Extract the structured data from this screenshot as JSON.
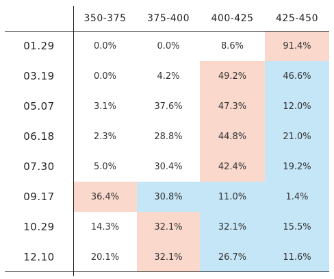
{
  "chart_data": {
    "type": "table",
    "columns": [
      "350-375",
      "375-400",
      "400-425",
      "425-450"
    ],
    "rows": [
      {
        "date": "01.29",
        "values": [
          "0.0%",
          "0.0%",
          "8.6%",
          "91.4%"
        ],
        "highlight": [
          "none",
          "none",
          "none",
          "peach"
        ]
      },
      {
        "date": "03.19",
        "values": [
          "0.0%",
          "4.2%",
          "49.2%",
          "46.6%"
        ],
        "highlight": [
          "none",
          "none",
          "peach",
          "blue"
        ]
      },
      {
        "date": "05.07",
        "values": [
          "3.1%",
          "37.6%",
          "47.3%",
          "12.0%"
        ],
        "highlight": [
          "none",
          "none",
          "peach",
          "blue"
        ]
      },
      {
        "date": "06.18",
        "values": [
          "2.3%",
          "28.8%",
          "44.8%",
          "21.0%"
        ],
        "highlight": [
          "none",
          "none",
          "peach",
          "blue"
        ]
      },
      {
        "date": "07.30",
        "values": [
          "5.0%",
          "30.4%",
          "42.4%",
          "19.2%"
        ],
        "highlight": [
          "none",
          "none",
          "peach",
          "blue"
        ]
      },
      {
        "date": "09.17",
        "values": [
          "36.4%",
          "30.8%",
          "11.0%",
          "1.4%"
        ],
        "highlight": [
          "peach",
          "blue",
          "blue",
          "blue"
        ]
      },
      {
        "date": "10.29",
        "values": [
          "14.3%",
          "32.1%",
          "32.1%",
          "15.5%"
        ],
        "highlight": [
          "none",
          "peach",
          "blue",
          "blue"
        ]
      },
      {
        "date": "12.10",
        "values": [
          "20.1%",
          "32.1%",
          "26.7%",
          "11.6%"
        ],
        "highlight": [
          "none",
          "peach",
          "blue",
          "blue"
        ]
      }
    ],
    "colors": {
      "peach": "#fad9cc",
      "blue": "#c5e6f6",
      "none": "#ffffff"
    }
  }
}
